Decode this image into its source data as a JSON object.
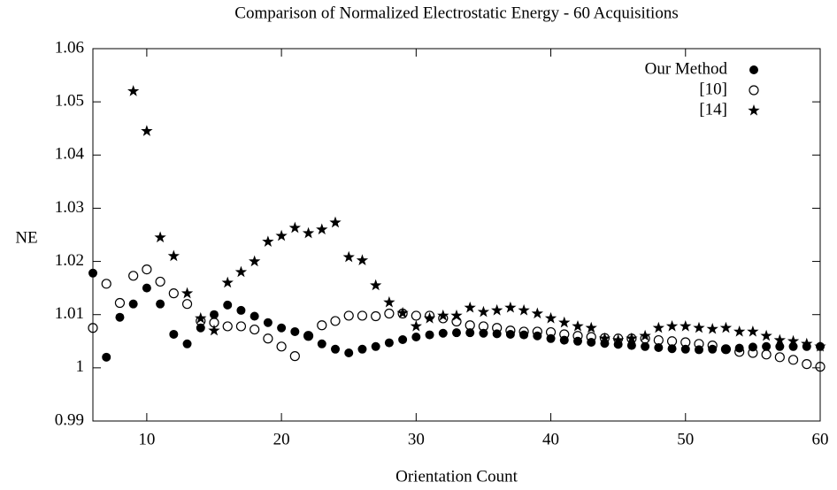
{
  "chart_data": {
    "type": "scatter",
    "title": "Comparison of Normalized Electrostatic Energy - 60 Acquisitions",
    "x_label": "Orientation Count",
    "y_label": "NE",
    "x": [
      6,
      7,
      8,
      9,
      10,
      11,
      12,
      13,
      14,
      15,
      16,
      17,
      18,
      19,
      20,
      21,
      22,
      23,
      24,
      25,
      26,
      27,
      28,
      29,
      30,
      31,
      32,
      33,
      34,
      35,
      36,
      37,
      38,
      39,
      40,
      41,
      42,
      43,
      44,
      45,
      46,
      47,
      48,
      49,
      50,
      51,
      52,
      53,
      54,
      55,
      56,
      57,
      58,
      59,
      60
    ],
    "series": [
      {
        "name": "Our Method",
        "marker": "filled-circle",
        "color": "#000000",
        "values": [
          1.0178,
          1.002,
          1.0095,
          1.012,
          1.015,
          1.012,
          1.0063,
          1.0045,
          1.0075,
          1.01,
          1.0118,
          1.0108,
          1.0097,
          1.0085,
          1.0075,
          1.0068,
          1.006,
          1.0045,
          1.0035,
          1.0028,
          1.0035,
          1.004,
          1.0047,
          1.0053,
          1.0058,
          1.0062,
          1.0065,
          1.0066,
          1.0066,
          1.0065,
          1.0064,
          1.0063,
          1.0062,
          1.006,
          1.0055,
          1.0052,
          1.005,
          1.0048,
          1.0046,
          1.0044,
          1.0042,
          1.004,
          1.0038,
          1.0036,
          1.0035,
          1.0034,
          1.0035,
          1.0035,
          1.0037,
          1.0039,
          1.004,
          1.004,
          1.004,
          1.004,
          1.004
        ]
      },
      {
        "name": "[10]",
        "marker": "open-circle",
        "color": "#000000",
        "values": [
          1.0075,
          1.0158,
          1.0122,
          1.0173,
          1.0185,
          1.0162,
          1.014,
          1.012,
          1.0088,
          1.0085,
          1.0078,
          1.0078,
          1.0072,
          1.0055,
          1.004,
          1.0022,
          1.006,
          1.008,
          1.0088,
          1.0098,
          1.0098,
          1.0097,
          1.0102,
          1.0102,
          1.0098,
          1.0098,
          1.0093,
          1.0087,
          1.008,
          1.0078,
          1.0075,
          1.007,
          1.0068,
          1.0068,
          1.0067,
          1.0063,
          1.006,
          1.0058,
          1.0056,
          1.0055,
          1.0055,
          1.0055,
          1.0052,
          1.005,
          1.0048,
          1.0045,
          1.0042,
          1.0035,
          1.003,
          1.0028,
          1.0025,
          1.002,
          1.0015,
          1.0007,
          1.0002
        ]
      },
      {
        "name": "[14]",
        "marker": "star",
        "color": "#000000",
        "values": [
          null,
          null,
          null,
          1.052,
          1.0445,
          1.0245,
          1.021,
          1.014,
          1.0093,
          1.007,
          1.016,
          1.018,
          1.02,
          1.0237,
          1.0248,
          1.0263,
          1.0253,
          1.026,
          1.0273,
          1.0208,
          1.0202,
          1.0155,
          1.0123,
          1.0103,
          1.0078,
          1.0093,
          1.0098,
          1.0098,
          1.0113,
          1.0105,
          1.0108,
          1.0113,
          1.0108,
          1.0102,
          1.0093,
          1.0085,
          1.0078,
          1.0075,
          1.0055,
          1.0052,
          1.0055,
          1.006,
          1.0075,
          1.0078,
          1.0078,
          1.0075,
          1.0073,
          1.0075,
          1.0068,
          1.0068,
          1.006,
          1.0052,
          1.005,
          1.0045,
          1.004
        ]
      }
    ],
    "xlim": [
      6,
      60
    ],
    "xticks": [
      10,
      20,
      30,
      40,
      50,
      60
    ],
    "ylim": [
      0.99,
      1.06
    ],
    "yticks": [
      0.99,
      1,
      1.01,
      1.02,
      1.03,
      1.04,
      1.05,
      1.06
    ],
    "grid": false,
    "legend": "upper right"
  }
}
